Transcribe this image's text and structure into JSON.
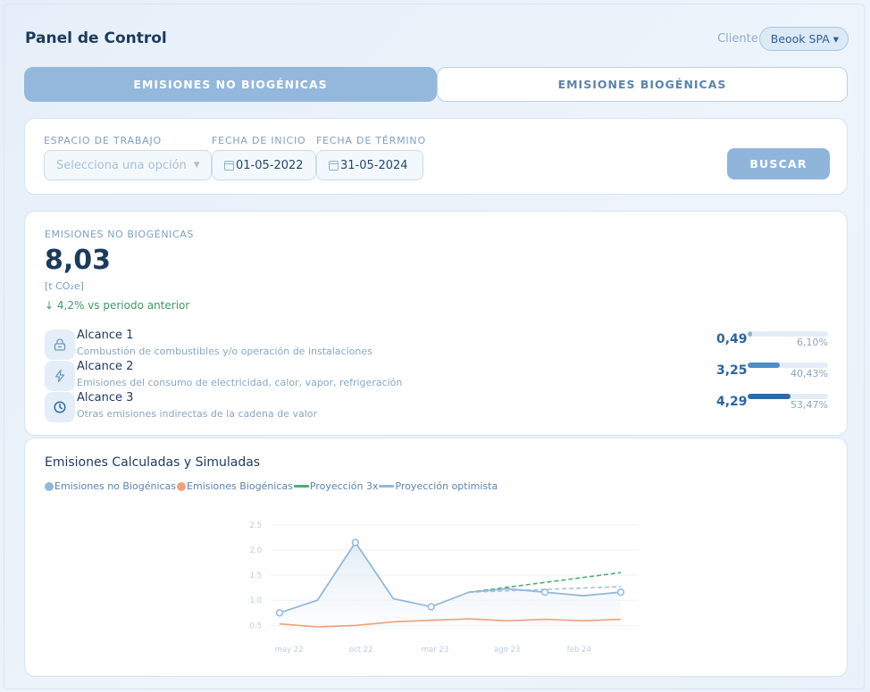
{
  "header": {
    "title": "Panel de Control",
    "client_label": "Cliente",
    "client_value": "Beook SPA ▾"
  },
  "tabs": [
    {
      "label": "EMISIONES NO BIOGÉNICAS",
      "active": true
    },
    {
      "label": "EMISIONES BIOGÉNICAS",
      "active": false
    }
  ],
  "filters": {
    "workspace_label": "ESPACIO DE TRABAJO",
    "workspace_placeholder": "Selecciona una opción",
    "start_label": "FECHA DE INICIO",
    "start_value": "01-05-2022",
    "end_label": "FECHA DE TÉRMINO",
    "end_value": "31-05-2024",
    "search_button": "BUSCAR"
  },
  "summary": {
    "label": "EMISIONES NO BIOGÉNICAS",
    "value": "8,03",
    "unit": "[t CO₂e]",
    "trend": "↓ 4,2% vs periodo anterior",
    "scopes": [
      {
        "name": "Alcance 1",
        "description": "Combustión de combustibles y/o operación de instalaciones",
        "value": "0,49",
        "percent": "6,10%",
        "fraction": 0.061,
        "icon": "lock-icon"
      },
      {
        "name": "Alcance 2",
        "description": "Emisiones del consumo de electricidad, calor, vapor, refrigeración",
        "value": "3,25",
        "percent": "40,43%",
        "fraction": 0.4043,
        "icon": "bolt-icon"
      },
      {
        "name": "Alcance 3",
        "description": "Otras emisiones indirectas de la cadena de valor",
        "value": "4,29",
        "percent": "53,47%",
        "fraction": 0.5347,
        "icon": "clock-icon"
      }
    ]
  },
  "chart": {
    "title": "Emisiones Calculadas y Simuladas",
    "legend": [
      {
        "label": "Emisiones no Biogénicas",
        "kind": "dot",
        "color": "#94b8dc"
      },
      {
        "label": "Emisiones Biogénicas",
        "kind": "dot",
        "color": "#f0a07c"
      },
      {
        "label": "Proyección 3x",
        "kind": "line",
        "color": "#4caf6e"
      },
      {
        "label": "Proyección optimista",
        "kind": "line",
        "color": "#94b8dc"
      }
    ]
  },
  "chart_data": {
    "type": "line",
    "x_tick_labels": [
      "may 22",
      "oct 22",
      "mar 23",
      "ago 23",
      "feb 24"
    ],
    "y_ticks": [
      "0.5",
      "1.0",
      "1.5",
      "2.0",
      "2.5"
    ],
    "ylim": [
      0.4,
      2.55
    ],
    "grid": true,
    "legend_position": "top-left",
    "colors": {
      "non_bio": "#94b8dc",
      "bio": "#f0a07c",
      "proj3x": "#4caf6e",
      "optimist": "#a9c3dd"
    },
    "series": [
      {
        "name": "Emisiones no Biogénicas",
        "x": [
          0,
          1,
          2,
          3,
          4,
          5,
          6,
          7,
          8,
          9
        ],
        "values": [
          0.75,
          1.0,
          2.15,
          1.03,
          0.87,
          1.16,
          1.23,
          1.16,
          1.09,
          1.16
        ],
        "markers": [
          0,
          2,
          4,
          7,
          9
        ]
      },
      {
        "name": "Emisiones Biogénicas",
        "x": [
          0,
          1,
          2,
          3,
          4,
          5,
          6,
          7,
          8,
          9
        ],
        "values": [
          0.53,
          0.47,
          0.5,
          0.57,
          0.6,
          0.63,
          0.59,
          0.62,
          0.59,
          0.62
        ]
      },
      {
        "name": "Proyección 3x",
        "x": [
          5,
          9
        ],
        "values": [
          1.16,
          1.55
        ]
      },
      {
        "name": "Proyección optimista",
        "x": [
          5,
          9
        ],
        "values": [
          1.16,
          1.27
        ]
      }
    ]
  }
}
